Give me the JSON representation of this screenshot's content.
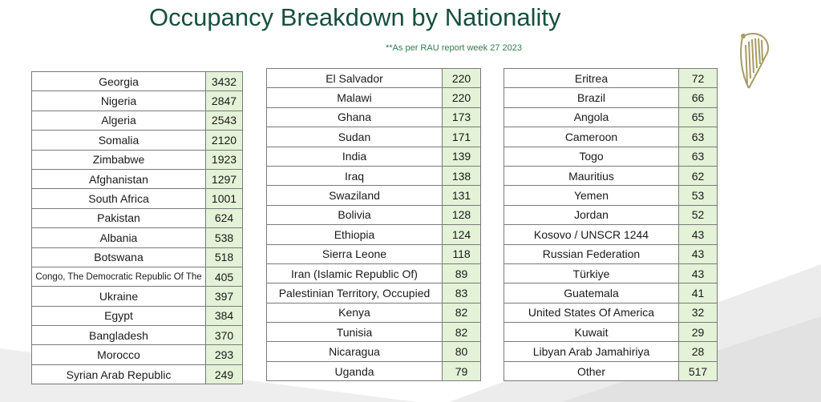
{
  "title": "Occupancy Breakdown by Nationality",
  "subtitle": "**As per RAU report week 27 2023",
  "logo_icon": "harp-icon",
  "colors": {
    "title": "#17503f",
    "count_cell": "#e4f2d7",
    "border": "#7a7a7a"
  },
  "tables": [
    {
      "rows": [
        {
          "country": "Georgia",
          "count": "3432"
        },
        {
          "country": "Nigeria",
          "count": "2847"
        },
        {
          "country": "Algeria",
          "count": "2543"
        },
        {
          "country": "Somalia",
          "count": "2120"
        },
        {
          "country": "Zimbabwe",
          "count": "1923"
        },
        {
          "country": "Afghanistan",
          "count": "1297"
        },
        {
          "country": "South Africa",
          "count": "1001"
        },
        {
          "country": "Pakistan",
          "count": "624"
        },
        {
          "country": "Albania",
          "count": "538"
        },
        {
          "country": "Botswana",
          "count": "518"
        },
        {
          "country": "Congo, The Democratic Republic Of The",
          "count": "405"
        },
        {
          "country": "Ukraine",
          "count": "397"
        },
        {
          "country": "Egypt",
          "count": "384"
        },
        {
          "country": "Bangladesh",
          "count": "370"
        },
        {
          "country": "Morocco",
          "count": "293"
        },
        {
          "country": "Syrian Arab Republic",
          "count": "249"
        }
      ]
    },
    {
      "rows": [
        {
          "country": "El Salvador",
          "count": "220"
        },
        {
          "country": "Malawi",
          "count": "220"
        },
        {
          "country": "Ghana",
          "count": "173"
        },
        {
          "country": "Sudan",
          "count": "171"
        },
        {
          "country": "India",
          "count": "139"
        },
        {
          "country": "Iraq",
          "count": "138"
        },
        {
          "country": "Swaziland",
          "count": "131"
        },
        {
          "country": "Bolivia",
          "count": "128"
        },
        {
          "country": "Ethiopia",
          "count": "124"
        },
        {
          "country": "Sierra Leone",
          "count": "118"
        },
        {
          "country": "Iran (Islamic Republic Of)",
          "count": "89"
        },
        {
          "country": "Palestinian Territory, Occupied",
          "count": "83"
        },
        {
          "country": "Kenya",
          "count": "82"
        },
        {
          "country": "Tunisia",
          "count": "82"
        },
        {
          "country": "Nicaragua",
          "count": "80"
        },
        {
          "country": "Uganda",
          "count": "79"
        }
      ]
    },
    {
      "rows": [
        {
          "country": "Eritrea",
          "count": "72"
        },
        {
          "country": "Brazil",
          "count": "66"
        },
        {
          "country": "Angola",
          "count": "65"
        },
        {
          "country": "Cameroon",
          "count": "63"
        },
        {
          "country": "Togo",
          "count": "63"
        },
        {
          "country": "Mauritius",
          "count": "62"
        },
        {
          "country": "Yemen",
          "count": "53"
        },
        {
          "country": "Jordan",
          "count": "52"
        },
        {
          "country": "Kosovo / UNSCR 1244",
          "count": "43"
        },
        {
          "country": "Russian Federation",
          "count": "43"
        },
        {
          "country": "Türkiye",
          "count": "43"
        },
        {
          "country": "Guatemala",
          "count": "41"
        },
        {
          "country": "United States Of America",
          "count": "32"
        },
        {
          "country": "Kuwait",
          "count": "29"
        },
        {
          "country": "Libyan Arab Jamahiriya",
          "count": "28"
        },
        {
          "country": "Other",
          "count": "517"
        }
      ]
    }
  ]
}
